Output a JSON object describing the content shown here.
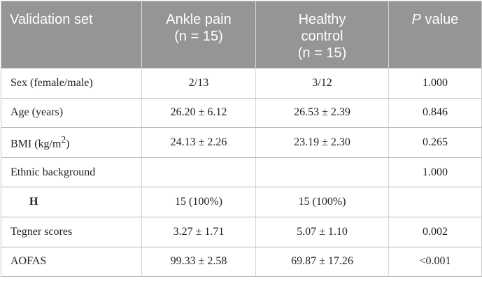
{
  "table": {
    "headers": [
      {
        "pre": "Validation set",
        "italic": "",
        "post": "",
        "line2": ""
      },
      {
        "pre": "Ankle pain",
        "italic": "",
        "post": "",
        "line2": "(n = 15)"
      },
      {
        "pre": "Healthy",
        "italic": "",
        "post": "",
        "line2": "control",
        "line3": "(n = 15)"
      },
      {
        "pre": "",
        "italic": "P",
        "post": " value",
        "line2": ""
      }
    ],
    "rows": [
      {
        "label": "Sex (female/male)",
        "ankle": "2/13",
        "healthy": "3/12",
        "p": "1.000"
      },
      {
        "label": "Age (years)",
        "ankle": "26.20 ± 6.12",
        "healthy": "26.53 ± 2.39",
        "p": "0.846"
      },
      {
        "label": "BMI (kg/m",
        "label_sup": "2",
        "label_end": ")",
        "ankle": "24.13 ± 2.26",
        "healthy": "23.19 ± 2.30",
        "p": "0.265"
      },
      {
        "label": "Ethnic background",
        "ankle": "",
        "healthy": "",
        "p": "1.000"
      },
      {
        "label": "H",
        "ankle": "15 (100%)",
        "healthy": "15 (100%)",
        "p": ""
      },
      {
        "label": "Tegner scores",
        "ankle": "3.27 ± 1.71",
        "healthy": "5.07 ± 1.10",
        "p": "0.002"
      },
      {
        "label": "AOFAS",
        "ankle": "99.33 ± 2.58",
        "healthy": "69.87 ± 17.26",
        "p": "<0.001"
      }
    ]
  }
}
